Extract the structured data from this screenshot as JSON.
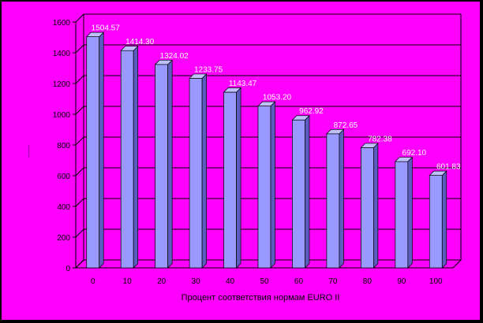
{
  "colors": {
    "background": "#ff00ff",
    "frame": "#000000",
    "bar_front": "#9999ff",
    "bar_side": "#5c5cc0",
    "bar_top": "#c0c0ff",
    "gridline": "#000000",
    "data_label": "#ffffff"
  },
  "chart_data": {
    "type": "bar",
    "style": "3d-column",
    "categories": [
      "0",
      "10",
      "20",
      "30",
      "40",
      "50",
      "60",
      "70",
      "80",
      "90",
      "100"
    ],
    "values": [
      1504.57,
      1414.3,
      1324.02,
      1233.75,
      1143.47,
      1053.2,
      962.92,
      872.65,
      782.38,
      692.1,
      601.83
    ],
    "data_labels": [
      "1504.57",
      "1414.30",
      "1324.02",
      "1233.75",
      "1143.47",
      "1053.20",
      "962.92",
      "872.65",
      "782.38",
      "692.10",
      "601.83"
    ],
    "title": "",
    "xlabel": "Процент соответствия нормам EURO II",
    "ylabel": "........",
    "ylim": [
      0,
      1600
    ],
    "yticks": [
      "0",
      "200",
      "400",
      "600",
      "800",
      "1000",
      "1200",
      "1400",
      "1600"
    ],
    "grid": true,
    "legend": "none"
  }
}
